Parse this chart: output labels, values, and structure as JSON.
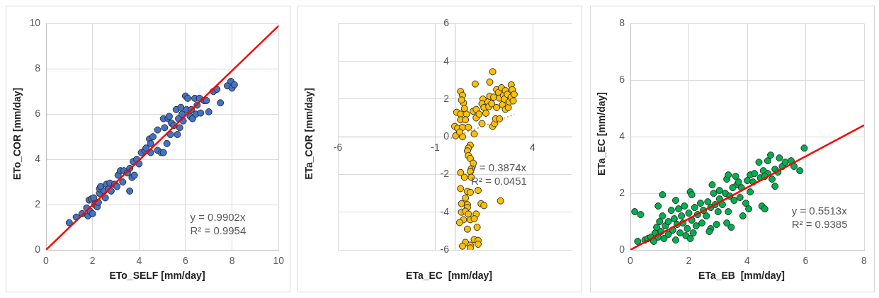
{
  "chart_data": [
    {
      "type": "scatter",
      "xlabel": "ETo_SELF [mm/day]",
      "ylabel": "ETo_COR [mm/day]",
      "xlim": [
        0,
        10
      ],
      "ylim": [
        0,
        10
      ],
      "xticks": [
        0,
        2,
        4,
        6,
        8,
        10
      ],
      "yticks": [
        0,
        2,
        4,
        6,
        8,
        10
      ],
      "grid": true,
      "marker": "circle",
      "series": [
        {
          "color": "#4472c4",
          "x": [
            1.0,
            1.3,
            1.55,
            1.75,
            1.8,
            1.85,
            1.9,
            1.95,
            2.0,
            2.05,
            2.1,
            2.2,
            2.25,
            2.3,
            2.3,
            2.35,
            2.5,
            2.55,
            2.6,
            2.7,
            2.75,
            2.8,
            2.95,
            3.05,
            3.1,
            3.2,
            3.3,
            3.35,
            3.5,
            3.6,
            3.6,
            3.7,
            3.75,
            3.8,
            3.9,
            4.0,
            4.1,
            4.25,
            4.3,
            4.45,
            4.5,
            4.5,
            4.6,
            4.8,
            4.8,
            4.95,
            5.05,
            5.05,
            5.1,
            5.2,
            5.25,
            5.3,
            5.35,
            5.4,
            5.5,
            5.6,
            5.65,
            5.7,
            5.75,
            5.8,
            5.85,
            5.9,
            6.0,
            6.05,
            6.1,
            6.2,
            6.25,
            6.3,
            6.4,
            6.45,
            6.5,
            6.6,
            6.65,
            6.8,
            6.9,
            7.0,
            7.2,
            7.35,
            7.5,
            7.8,
            7.95,
            8.0,
            8.1
          ],
          "values": [
            1.2,
            1.45,
            1.6,
            1.85,
            1.5,
            2.2,
            1.7,
            2.25,
            1.6,
            2.3,
            2.0,
            1.9,
            2.1,
            2.5,
            2.7,
            2.8,
            2.6,
            2.3,
            2.9,
            2.7,
            2.95,
            2.6,
            2.9,
            2.8,
            3.3,
            3.5,
            3.0,
            3.5,
            3.4,
            2.6,
            3.6,
            3.2,
            3.9,
            3.3,
            4.0,
            3.8,
            4.3,
            4.4,
            4.5,
            4.9,
            4.3,
            4.7,
            5.0,
            4.4,
            5.3,
            4.3,
            4.3,
            5.8,
            5.4,
            4.7,
            5.8,
            5.9,
            5.1,
            5.6,
            5.5,
            6.2,
            5.1,
            5.8,
            5.4,
            6.3,
            6.0,
            5.7,
            6.8,
            6.2,
            6.7,
            5.9,
            6.2,
            5.8,
            6.7,
            6.0,
            6.4,
            6.7,
            6.05,
            6.6,
            6.6,
            6.1,
            7.0,
            7.1,
            6.5,
            7.25,
            7.45,
            7.15,
            7.3
          ]
        },
        {
          "type": "line",
          "color": "#ff0000",
          "line_style": "solid",
          "marker": "none",
          "x": [
            0,
            10
          ],
          "values": [
            0,
            9.9
          ]
        }
      ],
      "annotations": [
        "y = 0.9902x",
        "R² = 0.9954"
      ]
    },
    {
      "type": "scatter",
      "xlabel": "ETa_EC  [mm/day]",
      "ylabel": "ETa_COR [mm/day]",
      "xlim": [
        -6,
        6
      ],
      "ylim": [
        -6,
        6
      ],
      "xticks": [
        -6,
        -1,
        4
      ],
      "yticks": [
        -6,
        -4,
        -2,
        0,
        2,
        4,
        6
      ],
      "grid": true,
      "marker": "circle",
      "series": [
        {
          "color": "#ffc000",
          "x": [
            0.3,
            0.4,
            0.45,
            0.35,
            0.1,
            0.3,
            0.6,
            0.5,
            0.3,
            0.55,
            0.0,
            0.15,
            0.4,
            0.7,
            0.05,
            0.4,
            1.0,
            0.25,
            1.05,
            0.95,
            1.1,
            1.1,
            1.25,
            1.45,
            1.4,
            1.5,
            1.4,
            1.7,
            1.6,
            1.8,
            1.75,
            1.8,
            1.95,
            1.9,
            1.95,
            2.0,
            2.05,
            2.15,
            2.1,
            2.3,
            2.15,
            2.25,
            2.3,
            2.4,
            2.45,
            2.5,
            2.55,
            2.6,
            2.6,
            2.7,
            2.75,
            2.8,
            2.9,
            2.95,
            2.9,
            3.0,
            3.05,
            0.8,
            0.7,
            0.65,
            0.7,
            0.8,
            0.95,
            0.85,
            0.8,
            0.3,
            0.5,
            0.85,
            0.3,
            0.65,
            0.8,
            1.2,
            0.55,
            0.35,
            0.65,
            0.65,
            1.35,
            1.5,
            2.35,
            0.35,
            0.55,
            0.7,
            1.1,
            0.45,
            0.8,
            1.0,
            0.25,
            1.15,
            0.65,
            1.0,
            1.2,
            0.55,
            0.8,
            1.2,
            0.4,
            0.8
          ],
          "values": [
            2.4,
            2.2,
            1.8,
            1.95,
            1.3,
            1.2,
            1.2,
            1.5,
            0.9,
            0.9,
            0.55,
            0.45,
            0.5,
            0.5,
            0.05,
            0.0,
            0.15,
            0.25,
            2.8,
            1.35,
            1.45,
            1.0,
            1.2,
            2.0,
            1.75,
            1.55,
            0.7,
            1.85,
            1.25,
            2.15,
            1.6,
            2.9,
            3.45,
            1.75,
            0.55,
            2.1,
            0.7,
            1.55,
            0.95,
            0.95,
            2.5,
            2.35,
            2.05,
            2.6,
            1.7,
            2.2,
            2.0,
            2.45,
            1.45,
            2.25,
            1.55,
            1.85,
            2.75,
            2.5,
            2.1,
            1.9,
            2.25,
            -0.45,
            -0.6,
            -0.75,
            -1.0,
            -1.15,
            -1.4,
            -1.7,
            -1.85,
            -1.9,
            -2.15,
            -2.15,
            -2.75,
            -2.9,
            -2.95,
            -2.85,
            -3.25,
            -3.55,
            -3.6,
            -3.75,
            -3.55,
            -3.65,
            -3.4,
            -4.0,
            -3.95,
            -4.1,
            -4.1,
            -4.4,
            -4.4,
            -4.35,
            -4.55,
            -4.8,
            -4.9,
            -5.45,
            -5.5,
            -5.6,
            -5.75,
            -5.7,
            -5.8,
            -5.9
          ]
        },
        {
          "type": "line",
          "color": "#ed7d31",
          "line_style": "dotted",
          "marker": "none",
          "x": [
            -0.2,
            3.06
          ],
          "values": [
            -0.08,
            1.19
          ]
        }
      ],
      "annotations": [
        "y = 0.3874x",
        "R² = 0.0451"
      ]
    },
    {
      "type": "scatter",
      "xlabel": "ETa_EB  [mm/day]",
      "ylabel": "ETa_EC [mm/day]",
      "xlim": [
        0,
        8
      ],
      "ylim": [
        0,
        8
      ],
      "xticks": [
        0,
        2,
        4,
        6,
        8
      ],
      "yticks": [
        0,
        2,
        4,
        6,
        8
      ],
      "grid": true,
      "marker": "circle",
      "series": [
        {
          "color": "#00b050",
          "x": [
            0.15,
            0.35,
            0.95,
            1.1,
            1.55,
            2.05,
            2.1,
            2.8,
            3.05,
            3.3,
            3.35,
            3.6,
            3.65,
            3.85,
            3.95,
            4.05,
            4.1,
            4.1,
            4.25,
            4.4,
            4.5,
            4.6,
            4.55,
            4.7,
            4.8,
            4.85,
            4.95,
            5.1,
            5.2,
            5.3,
            5.5,
            5.6,
            5.8,
            5.95,
            4.95,
            4.7,
            5.05,
            3.45,
            3.3,
            2.75,
            2.7,
            2.95,
            3.35,
            3.0,
            0.25,
            0.5,
            0.6,
            0.7,
            0.8,
            0.85,
            0.9,
            0.95,
            1.0,
            1.05,
            1.1,
            1.15,
            1.2,
            1.3,
            1.3,
            1.4,
            1.45,
            1.5,
            1.55,
            1.6,
            1.65,
            1.7,
            1.75,
            1.8,
            1.85,
            1.9,
            1.95,
            2.0,
            2.05,
            2.1,
            2.15,
            2.2,
            2.25,
            2.3,
            2.4,
            2.45,
            2.5,
            2.6,
            2.65,
            2.75,
            2.85,
            2.9,
            3.05,
            3.15,
            3.25,
            3.4,
            3.5,
            3.55,
            3.7,
            3.75,
            3.8,
            4.0,
            4.2,
            4.45,
            4.6
          ],
          "values": [
            1.35,
            1.25,
            1.55,
            1.95,
            1.75,
            2.05,
            1.95,
            2.3,
            2.1,
            2.5,
            2.65,
            2.6,
            2.3,
            1.2,
            1.65,
            1.45,
            2.05,
            2.65,
            2.7,
            3.1,
            1.55,
            1.45,
            2.8,
            3.15,
            3.35,
            2.5,
            2.25,
            3.25,
            2.95,
            3.1,
            3.15,
            2.95,
            2.8,
            3.6,
            2.85,
            2.7,
            2.75,
            0.8,
            0.95,
            0.75,
            0.65,
            0.9,
            1.35,
            1.35,
            0.3,
            0.35,
            0.4,
            0.45,
            0.3,
            0.6,
            0.8,
            0.45,
            1.0,
            0.65,
            1.2,
            0.4,
            0.85,
            1.0,
            0.55,
            1.4,
            0.7,
            1.1,
            0.35,
            0.9,
            1.45,
            0.6,
            1.2,
            0.95,
            1.55,
            0.5,
            0.75,
            1.3,
            0.4,
            1.05,
            0.6,
            1.5,
            0.85,
            1.25,
            1.65,
            0.95,
            1.4,
            1.2,
            1.7,
            1.5,
            2.0,
            1.6,
            1.8,
            1.6,
            2.0,
            1.9,
            2.2,
            1.75,
            2.4,
            1.85,
            2.2,
            2.45,
            2.4,
            2.55,
            2.6
          ]
        },
        {
          "type": "line",
          "color": "#ff0000",
          "line_style": "solid",
          "marker": "none",
          "x": [
            0,
            8
          ],
          "values": [
            0,
            4.41
          ]
        }
      ],
      "annotations": [
        "y = 0.5513x",
        "R² = 0.9385"
      ]
    }
  ]
}
